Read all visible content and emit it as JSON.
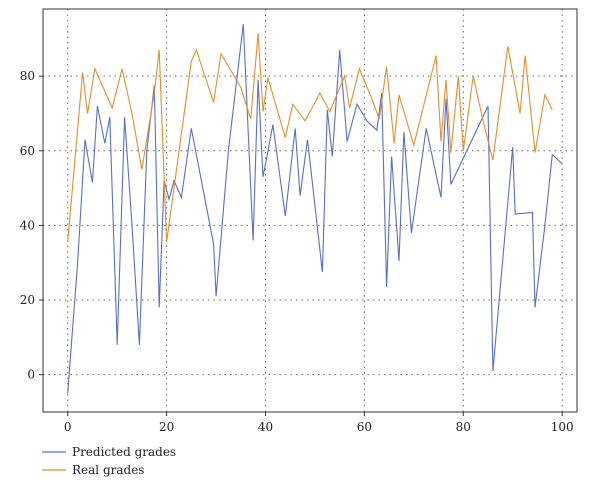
{
  "chart_data": {
    "type": "line",
    "xlim": [
      -5,
      103
    ],
    "ylim": [
      -10,
      98
    ],
    "x_ticks": [
      0,
      20,
      40,
      60,
      80,
      100
    ],
    "y_ticks": [
      0,
      20,
      40,
      60,
      80
    ],
    "grid": "dotted",
    "legend_placement": "bottom-left",
    "series": [
      {
        "name": "Predicted grades",
        "color": "#5a6fc4",
        "points": [
          [
            0,
            -5
          ],
          [
            2,
            30
          ],
          [
            3.5,
            63
          ],
          [
            5,
            51.5
          ],
          [
            6,
            72
          ],
          [
            7.5,
            62
          ],
          [
            8.5,
            69
          ],
          [
            10,
            8
          ],
          [
            11.5,
            69
          ],
          [
            13,
            40
          ],
          [
            14.5,
            8
          ],
          [
            16,
            60
          ],
          [
            17.5,
            77.5
          ],
          [
            18.5,
            18
          ],
          [
            19.5,
            52
          ],
          [
            20.5,
            47
          ],
          [
            21.5,
            52
          ],
          [
            23,
            47.5
          ],
          [
            25,
            66
          ],
          [
            29.5,
            35
          ],
          [
            30,
            21
          ],
          [
            32.5,
            60
          ],
          [
            35.5,
            94
          ],
          [
            37.5,
            36
          ],
          [
            38.5,
            79
          ],
          [
            39.5,
            53
          ],
          [
            40.5,
            60
          ],
          [
            41.5,
            67
          ],
          [
            44,
            42.5
          ],
          [
            46,
            66
          ],
          [
            47,
            48
          ],
          [
            48.5,
            63
          ],
          [
            51.5,
            27.5
          ],
          [
            52.5,
            71
          ],
          [
            53.5,
            58.5
          ],
          [
            55,
            87
          ],
          [
            56.5,
            62.5
          ],
          [
            58.5,
            72.5
          ],
          [
            60.5,
            68
          ],
          [
            62.5,
            65.5
          ],
          [
            63.5,
            75.5
          ],
          [
            64.5,
            23.5
          ],
          [
            65.5,
            58.5
          ],
          [
            67,
            30.5
          ],
          [
            68,
            65
          ],
          [
            69.5,
            38
          ],
          [
            71,
            52
          ],
          [
            72.5,
            66
          ],
          [
            75.5,
            47.5
          ],
          [
            76.5,
            74
          ],
          [
            77.5,
            51
          ],
          [
            85,
            72
          ],
          [
            86,
            1
          ],
          [
            90,
            61
          ],
          [
            90.5,
            43
          ],
          [
            94,
            43.5
          ],
          [
            94.5,
            18
          ],
          [
            96.5,
            40
          ],
          [
            98,
            59
          ],
          [
            100,
            56.5
          ]
        ]
      },
      {
        "name": "Real grades",
        "color": "#e0902e",
        "points": [
          [
            0,
            35.5
          ],
          [
            3,
            81
          ],
          [
            4,
            70
          ],
          [
            5.5,
            82
          ],
          [
            9,
            71.5
          ],
          [
            11,
            82
          ],
          [
            13,
            70
          ],
          [
            15,
            55
          ],
          [
            17.5,
            75.5
          ],
          [
            18.5,
            87
          ],
          [
            20,
            35.5
          ],
          [
            25,
            84
          ],
          [
            26,
            87
          ],
          [
            29.5,
            73
          ],
          [
            31,
            86
          ],
          [
            35,
            77
          ],
          [
            37,
            68.5
          ],
          [
            38.5,
            91.5
          ],
          [
            39.5,
            70.5
          ],
          [
            40.5,
            79.5
          ],
          [
            44,
            63.5
          ],
          [
            45.5,
            72.5
          ],
          [
            48,
            68
          ],
          [
            51,
            75.5
          ],
          [
            53,
            70.5
          ],
          [
            56,
            80
          ],
          [
            57,
            71.5
          ],
          [
            59,
            82
          ],
          [
            61.5,
            74
          ],
          [
            63,
            68.5
          ],
          [
            64.5,
            82.5
          ],
          [
            66,
            62
          ],
          [
            67,
            75
          ],
          [
            70,
            61.5
          ],
          [
            74.5,
            85.5
          ],
          [
            75.5,
            62.5
          ],
          [
            76.5,
            79
          ],
          [
            77.5,
            59.5
          ],
          [
            79,
            80
          ],
          [
            80,
            60
          ],
          [
            82,
            80
          ],
          [
            84,
            68
          ],
          [
            86,
            57.5
          ],
          [
            89,
            88
          ],
          [
            91.5,
            70
          ],
          [
            92.5,
            85.5
          ],
          [
            94.5,
            59.5
          ],
          [
            96.5,
            75
          ],
          [
            98,
            71
          ]
        ]
      }
    ]
  }
}
